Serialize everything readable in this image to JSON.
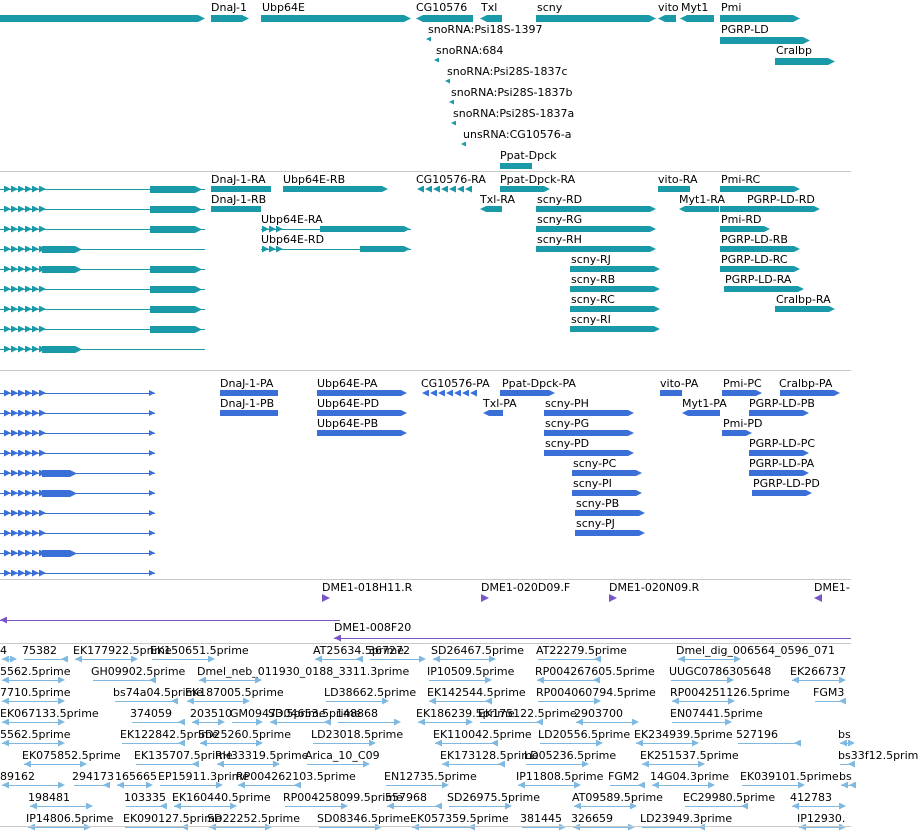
{
  "colors": {
    "gene": "#1a9aa8",
    "transcript": "#1a9aa8",
    "protein": "#3a6fd8",
    "clone": "#7a55c8",
    "est": "#7fb8e0",
    "divider": "#c8c8c8"
  },
  "tracks": {
    "genes": {
      "labels": [
        "DnaJ-1",
        "Ubp64E",
        "CG10576",
        "Txl",
        "scny",
        "vito",
        "Myt1",
        "Pmi",
        "PGRP-LD",
        "Cralbp",
        "snoRNA:Psi18S-1397",
        "snoRNA:684",
        "snoRNA:Psi28S-1837c",
        "snoRNA:Psi28S-1837b",
        "snoRNA:Psi28S-1837a",
        "unsRNA:CG10576-a",
        "Ppat-Dpck"
      ]
    },
    "transcripts": {
      "labels": [
        "DnaJ-1-RA",
        "Ubp64E-RB",
        "CG10576-RA",
        "Ppat-Dpck-RA",
        "vito-RA",
        "Pmi-RC",
        "DnaJ-1-RB",
        "Txl-RA",
        "scny-RD",
        "Myt1-RA",
        "PGRP-LD-RD",
        "Ubp64E-RA",
        "scny-RG",
        "Pmi-RD",
        "Ubp64E-RD",
        "scny-RH",
        "PGRP-LD-RB",
        "scny-RJ",
        "PGRP-LD-RC",
        "scny-RB",
        "PGRP-LD-RA",
        "scny-RC",
        "Cralbp-RA",
        "scny-RI"
      ]
    },
    "proteins": {
      "labels": [
        "DnaJ-1-PA",
        "Ubp64E-PA",
        "CG10576-PA",
        "Ppat-Dpck-PA",
        "vito-PA",
        "Pmi-PC",
        "Cralbp-PA",
        "DnaJ-1-PB",
        "Ubp64E-PD",
        "Txl-PA",
        "scny-PH",
        "Myt1-PA",
        "PGRP-LD-PB",
        "Ubp64E-PB",
        "scny-PG",
        "Pmi-PD",
        "scny-PD",
        "PGRP-LD-PC",
        "scny-PC",
        "PGRP-LD-PA",
        "scny-PI",
        "PGRP-LD-PD",
        "scny-PB",
        "scny-PJ"
      ]
    },
    "clones": {
      "labels": [
        "DME1-018H11.R",
        "DME1-020D09.F",
        "DME1-020N09.R",
        "DME1-",
        "DME1-008F20"
      ]
    },
    "ests": {
      "rows": [
        [
          "4",
          "75382",
          "EK177922.5prime",
          "EK150651.5prime",
          "AT25634.5prime",
          "367272",
          "SD26467.5prime",
          "AT22279.5prime",
          "Dmel_dig_006564_0596_071"
        ],
        [
          "5562.5prime",
          "GH09902.5prime",
          "Dmel_neb_011930_0188_3311.3prime",
          "IP10509.5prime",
          "RP004267605.5prime",
          "UUGC0786305648",
          "EK266737"
        ],
        [
          "7710.5prime",
          "bs74a04.5prime",
          "EK187005.5prime",
          "LD38662.5prime",
          "EK142544.5prime",
          "RP004060794.5prime",
          "RP004251126.5prime",
          "FGM3"
        ],
        [
          "EK067133.5prime",
          "374059",
          "203510",
          "GM09473.5prime",
          "SD04653.5prime",
          "148868",
          "EK186239.5prime",
          "EK175122.5prime",
          "2903700",
          "EN07441.5prime"
        ],
        [
          "5562.5prime",
          "EK122842.5prime",
          "SD25260.5prime",
          "LD23018.5prime",
          "EK110042.5prime",
          "LD20556.5prime",
          "EK234939.5prime",
          "527196",
          "bs"
        ],
        [
          "EK075852.5prime",
          "EK135707.5prime",
          "RH33319.5prime",
          "Arica_10_C09",
          "EK173128.5prime",
          "LD05236.5prime",
          "EK251537.5prime",
          "bs33f12.5prim"
        ],
        [
          "89162",
          "294173",
          "165665",
          "EP15911.3prime",
          "RP004262103.5prime",
          "EN12735.5prime",
          "IP11808.5prime",
          "FGM2",
          "14G04.3prime",
          "EK039101.5prime",
          "bs"
        ],
        [
          "198481",
          "103335",
          "EK160440.5prime",
          "RP004258099.5prime",
          "557968",
          "SD26975.5prime",
          "AT09589.5prime",
          "EC29980.5prime",
          "412783"
        ],
        [
          "IP14806.5prime",
          "EK090127.5prime",
          "SD22252.5prime",
          "SD08346.5prime",
          "EK057359.5prime",
          "381445",
          "326659",
          "LD23949.3prime",
          "IP12930."
        ]
      ]
    }
  }
}
